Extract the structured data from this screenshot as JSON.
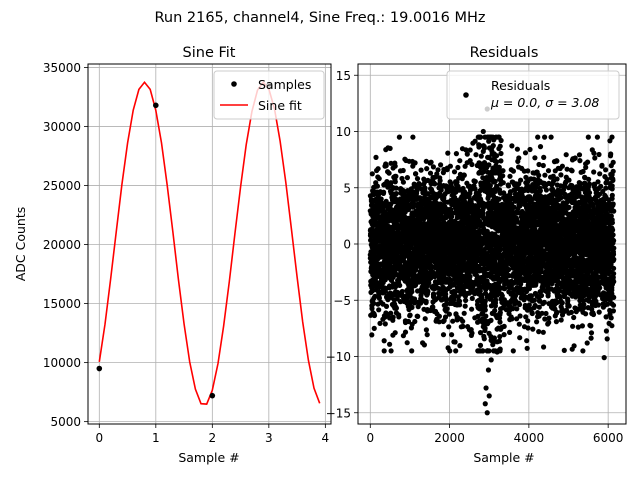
{
  "suptitle": "Run 2165, channel4, Sine Freq.: 19.0016 MHz",
  "colors": {
    "samples": "#000000",
    "fit": "#ff0000",
    "residuals": "#000000",
    "grid": "#b0b0b0"
  },
  "chart_data": [
    {
      "type": "line",
      "title": "Sine Fit",
      "xlabel": "Sample #",
      "ylabel": "ADC Counts",
      "xlim": [
        -0.2,
        4.1
      ],
      "ylim": [
        4800,
        35300
      ],
      "xticks": [
        0,
        1,
        2,
        3,
        4
      ],
      "yticks": [
        5000,
        10000,
        15000,
        20000,
        25000,
        30000,
        35000
      ],
      "grid": true,
      "legend": {
        "placement": "top-right",
        "entries": [
          "Samples",
          "Sine fit"
        ]
      },
      "series": [
        {
          "name": "Samples",
          "style": "markers",
          "x": [
            0,
            1,
            2,
            3
          ],
          "y": [
            9500,
            31800,
            7200,
            33500
          ]
        },
        {
          "name": "Sine fit",
          "style": "line",
          "amplitude": 13700,
          "offset": 20050,
          "period_samples": 2.105,
          "phase_peak_x": 0.8,
          "x_range": [
            0,
            3.9
          ]
        }
      ]
    },
    {
      "type": "scatter",
      "title": "Residuals",
      "xlabel": "Sample #",
      "ylabel": "",
      "xlim": [
        -310,
        6450
      ],
      "ylim": [
        -16,
        16
      ],
      "xticks": [
        0,
        2000,
        4000,
        6000
      ],
      "yticks": [
        -15,
        -10,
        -5,
        0,
        5,
        10,
        15
      ],
      "grid": true,
      "legend": {
        "placement": "top-right",
        "entries": [
          "Residuals",
          "μ = 0.0, σ = 3.08"
        ]
      },
      "series": [
        {
          "name": "Residuals",
          "n_points": 6144,
          "mean": 0.0,
          "std": 3.08,
          "x_range": [
            0,
            6143
          ],
          "outliers": [
            {
              "x": 2950,
              "y": -15.0
            },
            {
              "x": 2900,
              "y": -14.2
            },
            {
              "x": 3000,
              "y": -13.5
            },
            {
              "x": 2920,
              "y": -12.8
            },
            {
              "x": 2980,
              "y": -11.2
            },
            {
              "x": 3050,
              "y": -10.3
            },
            {
              "x": 3200,
              "y": -9.6
            },
            {
              "x": 5900,
              "y": -10.1
            },
            {
              "x": 2950,
              "y": 12.0
            },
            {
              "x": 2850,
              "y": 10.0
            },
            {
              "x": 5500,
              "y": 9.5
            },
            {
              "x": 3300,
              "y": 9.2
            },
            {
              "x": 500,
              "y": 8.5
            },
            {
              "x": 100,
              "y": -7.5
            },
            {
              "x": 350,
              "y": -8.6
            }
          ]
        }
      ]
    }
  ]
}
